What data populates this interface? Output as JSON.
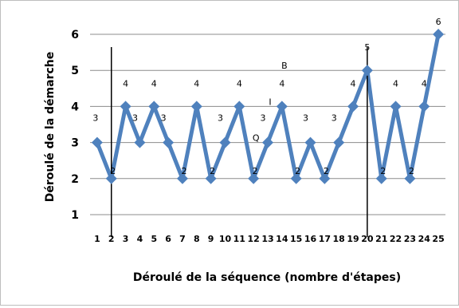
{
  "chart_data": {
    "type": "line",
    "xlabel": "Déroulé de la séquence (nombre d'étapes)",
    "ylabel": "Déroulé de la démarche",
    "ylim": [
      1,
      6
    ],
    "yticks": [
      1,
      2,
      3,
      4,
      5,
      6
    ],
    "grid": true,
    "x": [
      1,
      2,
      3,
      4,
      5,
      6,
      7,
      8,
      9,
      10,
      11,
      12,
      13,
      14,
      15,
      16,
      17,
      18,
      19,
      20,
      21,
      22,
      23,
      24,
      25
    ],
    "series": [
      {
        "values": [
          3,
          2,
          4,
          3,
          4,
          3,
          2,
          4,
          2,
          3,
          4,
          2,
          3,
          4,
          2,
          3,
          2,
          3,
          4,
          5,
          2,
          4,
          2,
          4,
          6
        ],
        "color": "#4f81bd",
        "data_labels": [
          "3",
          "2",
          "4",
          "3",
          "4",
          "3",
          "2",
          "4",
          "2",
          "3",
          "4",
          "2",
          "3",
          "4",
          "2",
          "3",
          "2",
          "3",
          "4",
          "5",
          "2",
          "4",
          "2",
          "4",
          "6"
        ]
      }
    ],
    "vertical_markers": [
      2,
      20
    ],
    "annotations": [
      {
        "text": "B",
        "x": 14,
        "y": 5
      },
      {
        "text": "I",
        "x": 13,
        "y": 4
      },
      {
        "text": "Q",
        "x": 12,
        "y": 3
      }
    ]
  }
}
